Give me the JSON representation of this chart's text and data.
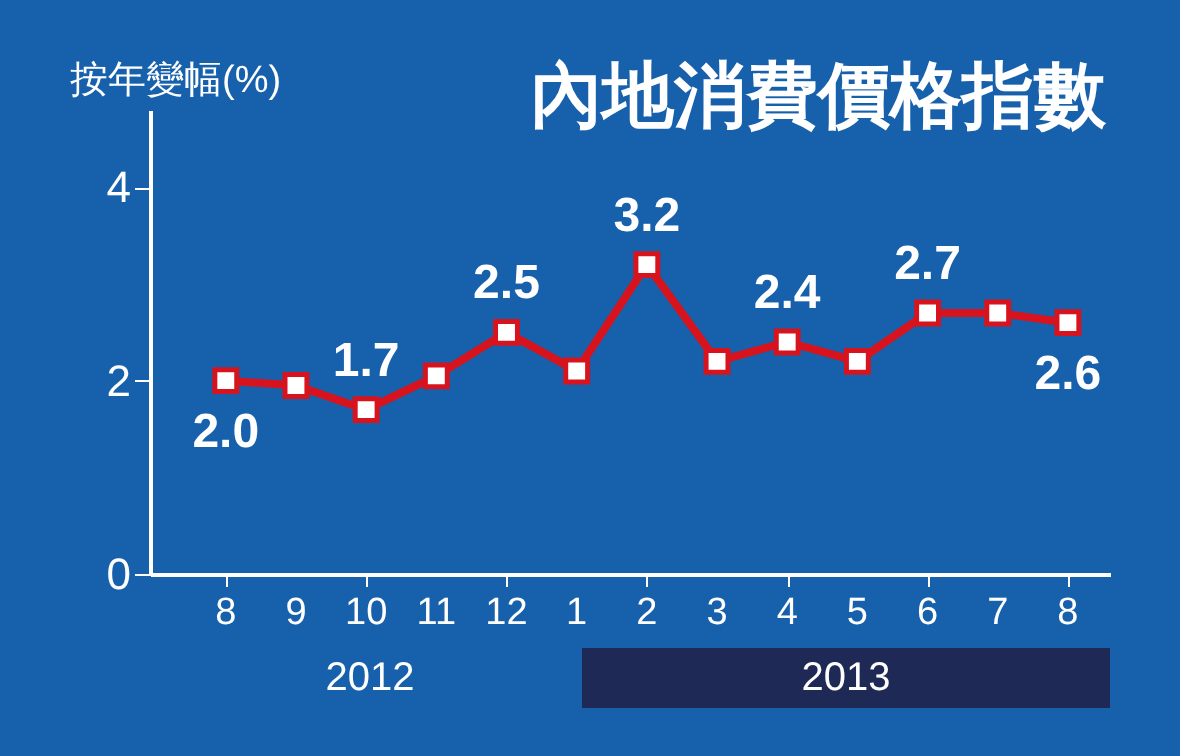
{
  "chart_data": {
    "type": "line",
    "title": "內地消費價格指數",
    "ylabel": "按年變幅(%)",
    "categories": [
      "8",
      "9",
      "10",
      "11",
      "12",
      "1",
      "2",
      "3",
      "4",
      "5",
      "6",
      "7",
      "8"
    ],
    "series": [
      {
        "color": "#d7141e",
        "values": [
          2.0,
          1.95,
          1.7,
          2.05,
          2.5,
          2.1,
          3.2,
          2.2,
          2.4,
          2.2,
          2.7,
          2.7,
          2.6
        ],
        "value_labels": [
          "2.0",
          null,
          "1.7",
          null,
          "2.5",
          null,
          "3.2",
          null,
          "2.4",
          null,
          "2.7",
          null,
          "2.6"
        ]
      }
    ],
    "ylim": [
      0,
      4.8
    ],
    "yticks": [
      0,
      2,
      4
    ],
    "grid": false,
    "legend": false,
    "marker": "square",
    "line_style": "solid",
    "annotations": [
      "2012",
      "2013"
    ]
  }
}
